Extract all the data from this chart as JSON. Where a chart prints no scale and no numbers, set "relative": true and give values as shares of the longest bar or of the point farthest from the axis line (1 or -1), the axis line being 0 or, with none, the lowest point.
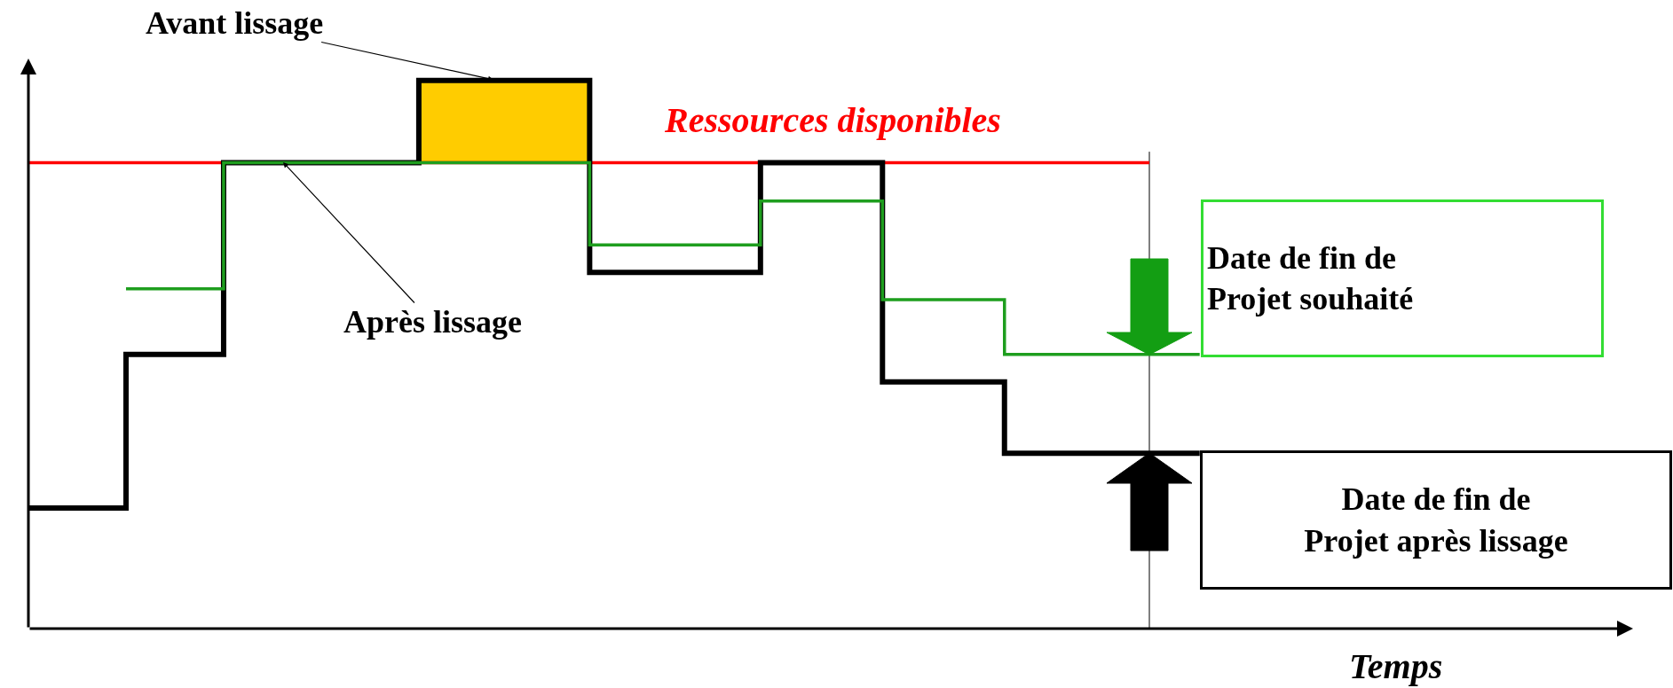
{
  "chart_data": {
    "type": "step",
    "relative": true,
    "xlabel": "Temps",
    "categories": [
      null,
      null,
      null,
      null,
      null,
      null,
      null,
      null,
      null,
      null,
      null,
      null,
      null,
      null,
      null,
      null,
      null,
      null,
      null,
      null,
      null,
      null,
      null,
      null,
      null,
      null,
      null,
      null,
      null,
      null,
      null,
      null,
      null,
      null,
      null,
      null,
      null,
      null,
      null,
      null,
      null,
      null,
      null,
      null,
      null,
      null,
      null,
      null,
      null
    ],
    "series": [
      {
        "color": "#000000",
        "values": [
          0.22,
          0.22,
          0.22,
          0.22,
          0.5,
          0.5,
          0.5,
          0.5,
          0.85,
          0.85,
          0.85,
          0.85,
          0.85,
          0.85,
          0.85,
          0.85,
          1,
          1,
          1,
          1,
          1,
          1,
          1,
          0.65,
          0.65,
          0.65,
          0.65,
          0.65,
          0.65,
          0.65,
          0.85,
          0.85,
          0.85,
          0.85,
          0.85,
          0.45,
          0.45,
          0.45,
          0.45,
          0.45,
          0.32,
          0.32,
          0.32,
          0.32,
          0.32,
          0.32,
          0.32,
          0.32,
          0.32
        ]
      },
      {
        "color": "#1e9e1e",
        "values": [
          null,
          null,
          null,
          null,
          0.62,
          0.62,
          0.62,
          0.62,
          0.85,
          0.85,
          0.85,
          0.85,
          0.85,
          0.85,
          0.85,
          0.85,
          0.85,
          0.85,
          0.85,
          0.85,
          0.85,
          0.85,
          0.85,
          0.7,
          0.7,
          0.7,
          0.7,
          0.7,
          0.7,
          0.7,
          0.78,
          0.78,
          0.78,
          0.78,
          0.78,
          0.6,
          0.6,
          0.6,
          0.6,
          0.6,
          0.5,
          0.5,
          0.5,
          0.5,
          0.5,
          0.5,
          0.5,
          0.5,
          0.5
        ]
      }
    ],
    "ref_lines": [
      {
        "axis": "y",
        "value": 0.85,
        "label": "Ressources disponibles",
        "color": "#ff0000"
      }
    ],
    "annotations": [
      "Avant lissage",
      "Après lissage",
      "Date de fin de\nProjet souhaité",
      "Date de fin de\nProjet après lissage"
    ]
  }
}
